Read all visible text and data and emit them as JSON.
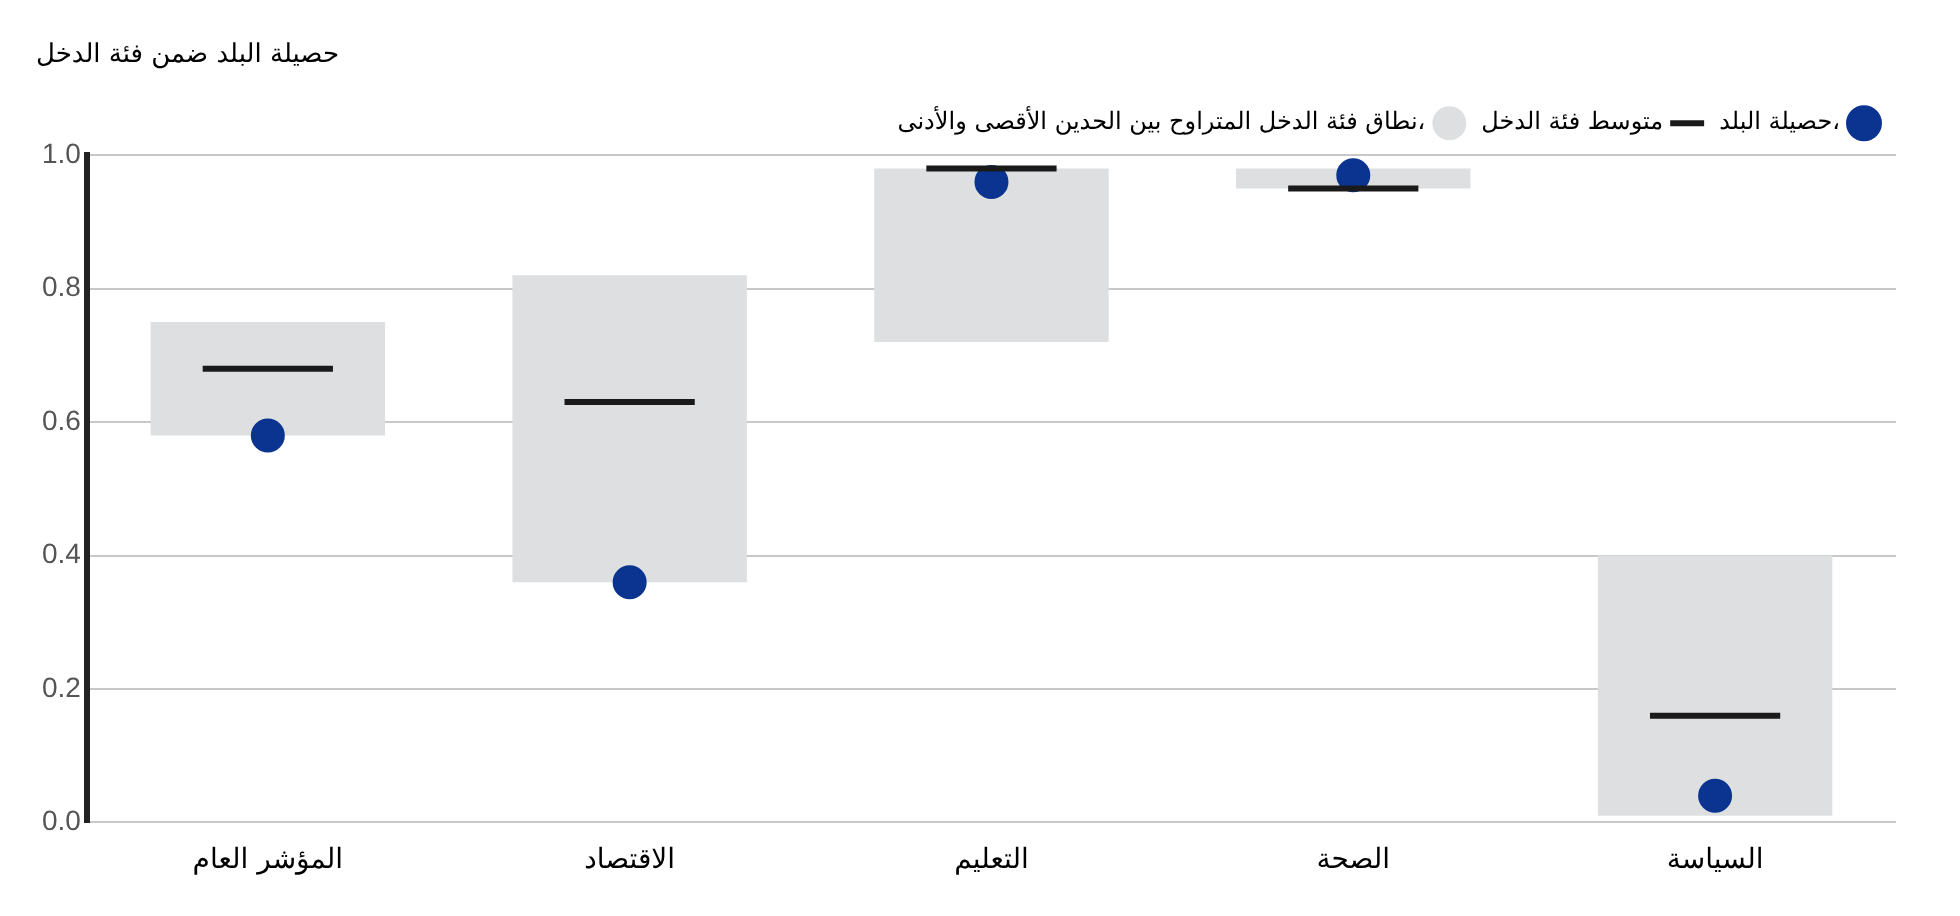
{
  "chart_data": {
    "type": "bar",
    "title": "حصيلة البلد ضمن فئة الدخل",
    "categories": [
      "المؤشر العام",
      "الاقتصاد",
      "التعليم",
      "الصحة",
      "السياسة"
    ],
    "series": [
      {
        "name": "نطاق فئة الدخل المتراوح بين الحدين الأقصى والأدنى،",
        "color": "#dedfe1",
        "base": [
          0.58,
          0.36,
          0.72,
          0.95,
          0.01
        ],
        "values": [
          0.17,
          0.46,
          0.26,
          0.03,
          0.39
        ]
      },
      {
        "name": "حصيلة البلد،",
        "type": "scatter",
        "color": "#0a3490",
        "marker": "circle",
        "x": [
          "المؤشر العام",
          "الاقتصاد",
          "التعليم",
          "الصحة",
          "السياسة"
        ],
        "values": [
          0.58,
          0.36,
          0.96,
          0.97,
          0.04
        ]
      },
      {
        "name": "متوسط فئة الدخل",
        "type": "box",
        "color": "#1a1a1a",
        "boxes": [
          {
            "low": 0.68,
            "q1": 0.68,
            "median": 0.68,
            "q3": 0.68,
            "high": 0.68
          },
          {
            "low": 0.63,
            "q1": 0.63,
            "median": 0.63,
            "q3": 0.63,
            "high": 0.63
          },
          {
            "low": 0.98,
            "q1": 0.98,
            "median": 0.98,
            "q3": 0.98,
            "high": 0.98
          },
          {
            "low": 0.95,
            "q1": 0.95,
            "median": 0.95,
            "q3": 0.95,
            "high": 0.95
          },
          {
            "low": 0.16,
            "q1": 0.16,
            "median": 0.16,
            "q3": 0.16,
            "high": 0.16
          }
        ]
      }
    ],
    "ylim": [
      0,
      1
    ],
    "yticks": [
      {
        "value": 0,
        "label": "0.0"
      },
      {
        "value": 0.2,
        "label": "0.2"
      },
      {
        "value": 0.4,
        "label": "0.4"
      },
      {
        "value": 0.6,
        "label": "0.6"
      },
      {
        "value": 0.8,
        "label": "0.8"
      },
      {
        "value": 1,
        "label": "1.0"
      }
    ],
    "grid": "y",
    "legend": "top right"
  }
}
